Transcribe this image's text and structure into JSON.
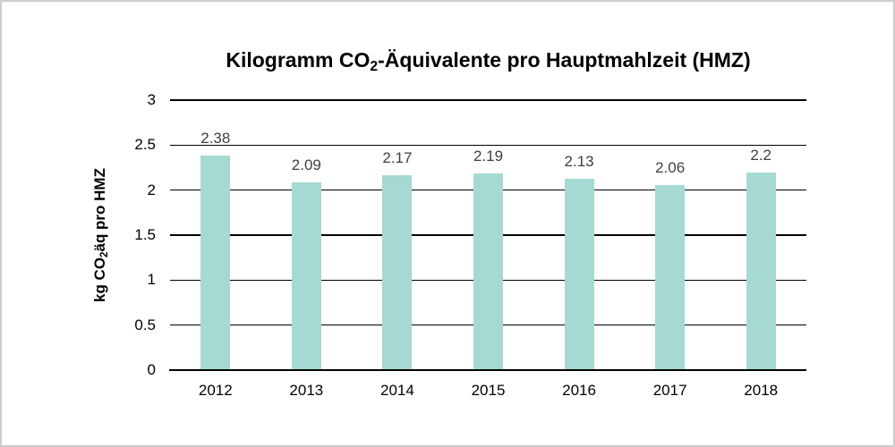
{
  "chart_data": {
    "type": "bar",
    "title": "Kilogramm CO2-Äquivalente pro Hauptmahlzeit (HMZ)",
    "title_parts": [
      {
        "text": "Kilogramm CO",
        "sub": false
      },
      {
        "text": "2",
        "sub": true
      },
      {
        "text": "-Äquivalente pro Hauptmahlzeit (HMZ)",
        "sub": false
      }
    ],
    "ylabel": "kg CO2äq pro HMZ",
    "ylabel_parts": [
      {
        "text": "kg CO",
        "sub": false
      },
      {
        "text": "2",
        "sub": true
      },
      {
        "text": "äq pro HMZ",
        "sub": false
      }
    ],
    "xlabel": "",
    "categories": [
      "2012",
      "2013",
      "2014",
      "2015",
      "2016",
      "2017",
      "2018"
    ],
    "values": [
      2.38,
      2.09,
      2.17,
      2.19,
      2.13,
      2.06,
      2.2
    ],
    "data_labels": [
      "2.38",
      "2.09",
      "2.17",
      "2.19",
      "2.13",
      "2.06",
      "2.2"
    ],
    "yticks": [
      0,
      0.5,
      1,
      1.5,
      2,
      2.5,
      3
    ],
    "ytick_labels": [
      "0",
      "0.5",
      "1",
      "1.5",
      "2",
      "2.5",
      "3"
    ],
    "ylim": [
      0,
      3
    ],
    "grid": true,
    "legend": false,
    "colors": {
      "bar": "#a5d9d2",
      "gridline": "#000000",
      "axis": "#000000",
      "data_label": "#3f3f3f",
      "tick_label": "#000000",
      "title": "#000000",
      "background": "#ffffff",
      "image_border": "#cccccc"
    }
  }
}
